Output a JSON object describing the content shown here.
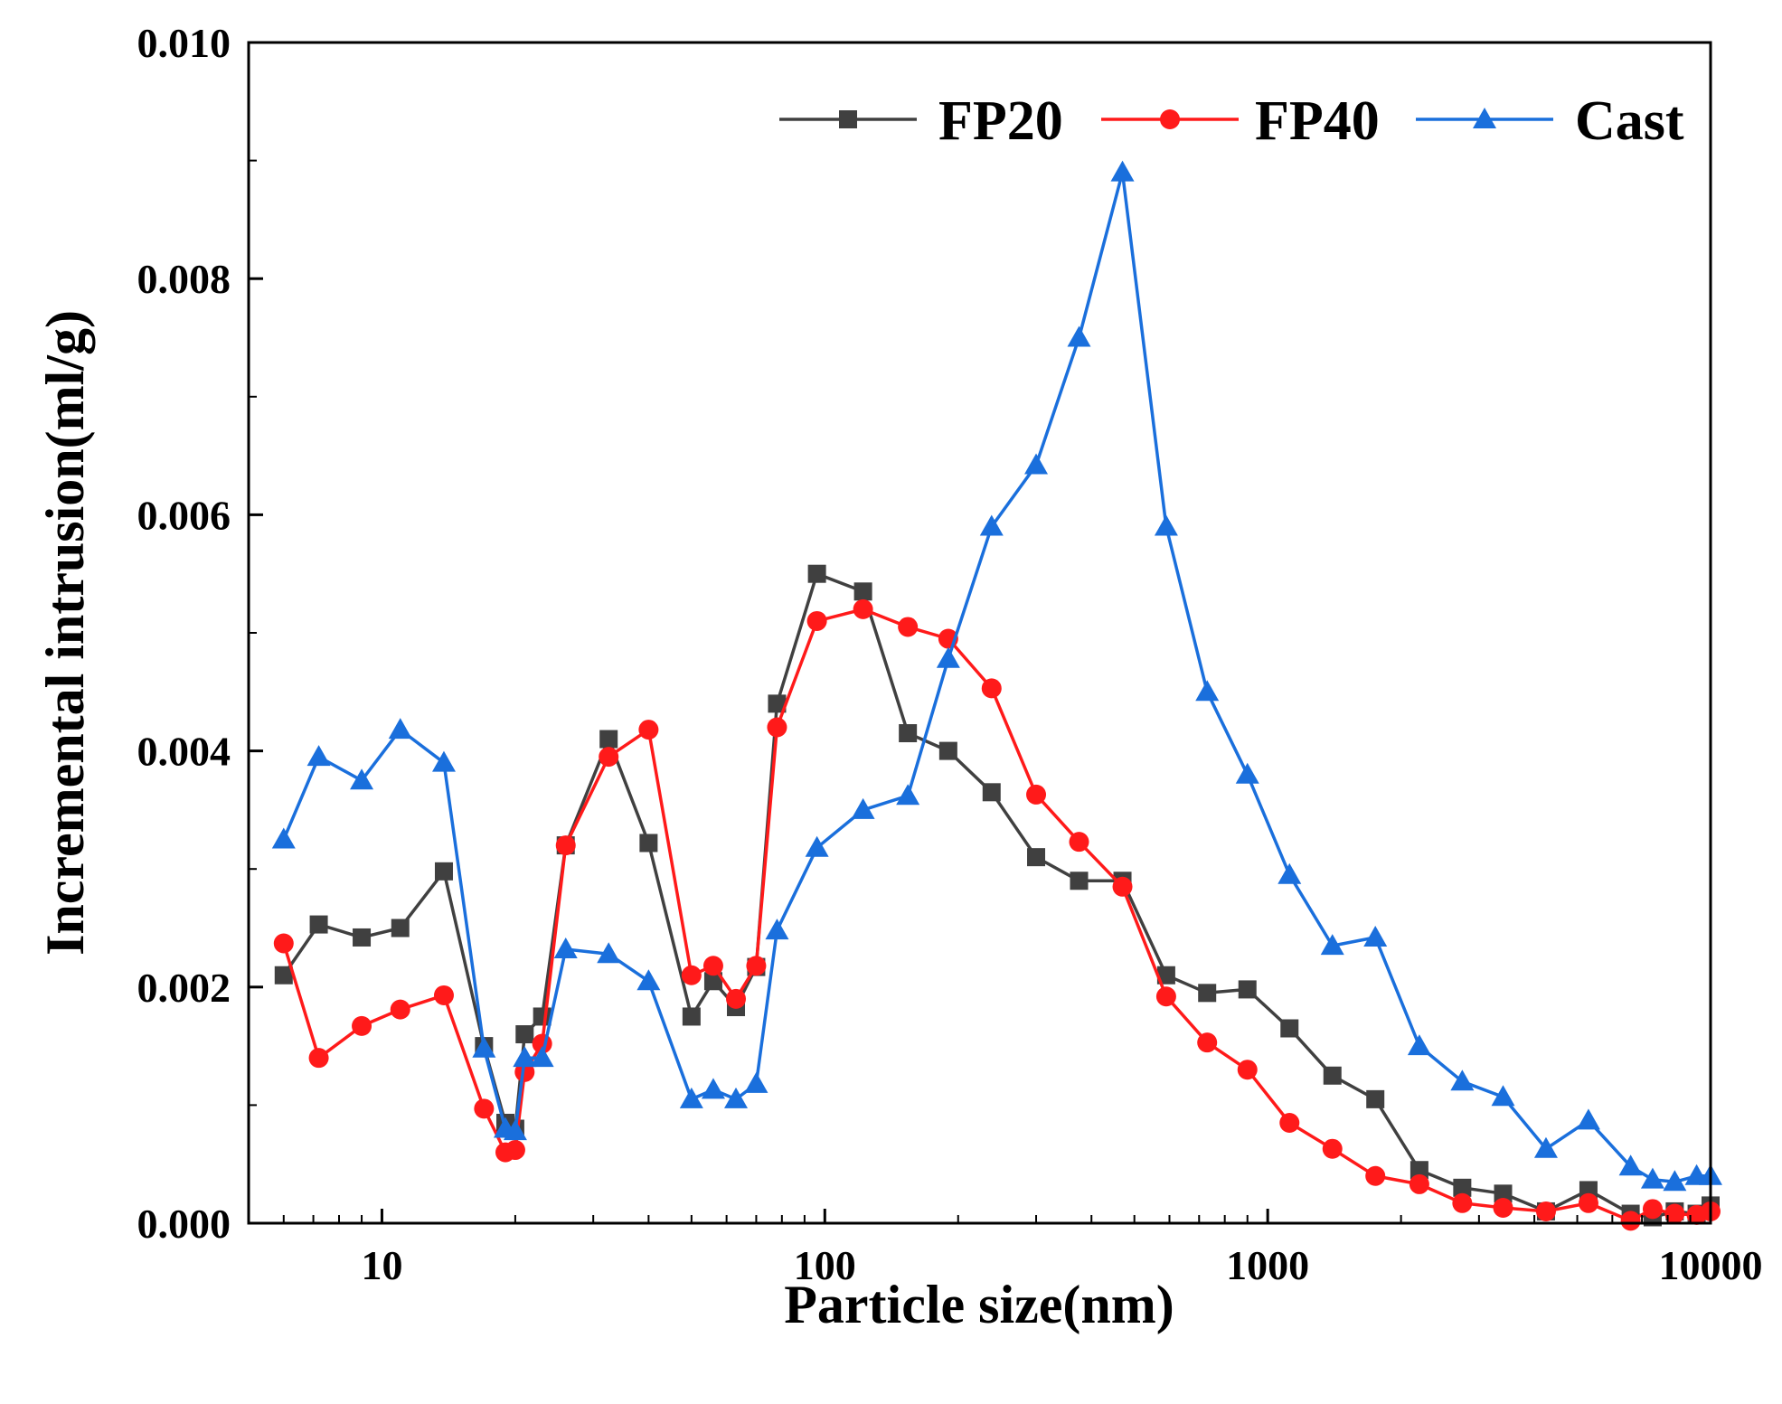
{
  "chart_data": {
    "type": "line",
    "title": "",
    "xlabel": "Particle size(nm)",
    "ylabel": "Incremental intrusion(ml/g)",
    "xscale": "log",
    "xlim": [
      5,
      10000
    ],
    "ylim": [
      0,
      0.01
    ],
    "xticks": [
      10,
      100,
      1000,
      10000
    ],
    "xtick_labels": [
      "10",
      "100",
      "1000",
      "10000"
    ],
    "yticks": [
      0,
      0.002,
      0.004,
      0.006,
      0.008,
      0.01
    ],
    "ytick_labels": [
      "0.000",
      "0.002",
      "0.004",
      "0.006",
      "0.008",
      "0.010"
    ],
    "grid": false,
    "legend_position": "top-right",
    "series": [
      {
        "name": "FP20",
        "color": "#404040",
        "marker": "square",
        "x": [
          6,
          7.2,
          9,
          11,
          13.8,
          17,
          19,
          20,
          21,
          23,
          26,
          32.5,
          40,
          50,
          56,
          63,
          70,
          78,
          96,
          122,
          154,
          190,
          238,
          300,
          375,
          470,
          590,
          730,
          900,
          1120,
          1400,
          1750,
          2200,
          2750,
          3400,
          4250,
          5300,
          6600,
          7400,
          8300,
          9300,
          10000
        ],
        "y": [
          0.0021,
          0.00253,
          0.00242,
          0.0025,
          0.00298,
          0.0015,
          0.00085,
          0.0008,
          0.0016,
          0.00175,
          0.0032,
          0.0041,
          0.00322,
          0.00175,
          0.00205,
          0.00183,
          0.00217,
          0.0044,
          0.0055,
          0.00535,
          0.00415,
          0.004,
          0.00365,
          0.0031,
          0.0029,
          0.0029,
          0.0021,
          0.00195,
          0.00198,
          0.00165,
          0.00125,
          0.00105,
          0.00045,
          0.0003,
          0.00025,
          0.0001,
          0.00028,
          8e-05,
          5e-05,
          0.0001,
          8e-05,
          0.00015
        ]
      },
      {
        "name": "FP40",
        "color": "#ff1a1a",
        "marker": "circle",
        "x": [
          6,
          7.2,
          9,
          11,
          13.8,
          17,
          19,
          20,
          21,
          23,
          26,
          32.5,
          40,
          50,
          56,
          63,
          70,
          78,
          96,
          122,
          154,
          190,
          238,
          300,
          375,
          470,
          590,
          730,
          900,
          1120,
          1400,
          1750,
          2200,
          2750,
          3400,
          4250,
          5300,
          6600,
          7400,
          8300,
          9300,
          10000
        ],
        "y": [
          0.00237,
          0.0014,
          0.00167,
          0.00181,
          0.00193,
          0.00097,
          0.0006,
          0.00062,
          0.00128,
          0.00152,
          0.0032,
          0.00395,
          0.00418,
          0.0021,
          0.00218,
          0.0019,
          0.00218,
          0.0042,
          0.0051,
          0.0052,
          0.00505,
          0.00495,
          0.00453,
          0.00363,
          0.00323,
          0.00285,
          0.00192,
          0.00153,
          0.0013,
          0.00085,
          0.00063,
          0.0004,
          0.00033,
          0.00017,
          0.00013,
          0.0001,
          0.00017,
          2e-05,
          0.00012,
          8e-05,
          7e-05,
          0.0001
        ]
      },
      {
        "name": "Cast",
        "color": "#1a6fdc",
        "marker": "triangle",
        "x": [
          6,
          7.2,
          9,
          11,
          13.8,
          17,
          19,
          20,
          21,
          23,
          26,
          32.5,
          40,
          50,
          56,
          63,
          70,
          78,
          96,
          122,
          154,
          190,
          238,
          300,
          375,
          470,
          590,
          730,
          900,
          1120,
          1400,
          1750,
          2200,
          2750,
          3400,
          4250,
          5300,
          6600,
          7400,
          8300,
          9300,
          10000
        ],
        "y": [
          0.00325,
          0.00395,
          0.00375,
          0.00418,
          0.0039,
          0.00148,
          0.0008,
          0.00078,
          0.0014,
          0.0014,
          0.00232,
          0.00228,
          0.00205,
          0.00105,
          0.00113,
          0.00105,
          0.00118,
          0.00248,
          0.00318,
          0.0035,
          0.00362,
          0.00478,
          0.0059,
          0.00642,
          0.0075,
          0.0089,
          0.0059,
          0.0045,
          0.0038,
          0.00295,
          0.00235,
          0.00242,
          0.0015,
          0.0012,
          0.00107,
          0.00063,
          0.00087,
          0.00048,
          0.00037,
          0.00035,
          0.0004,
          0.0004
        ]
      }
    ]
  }
}
